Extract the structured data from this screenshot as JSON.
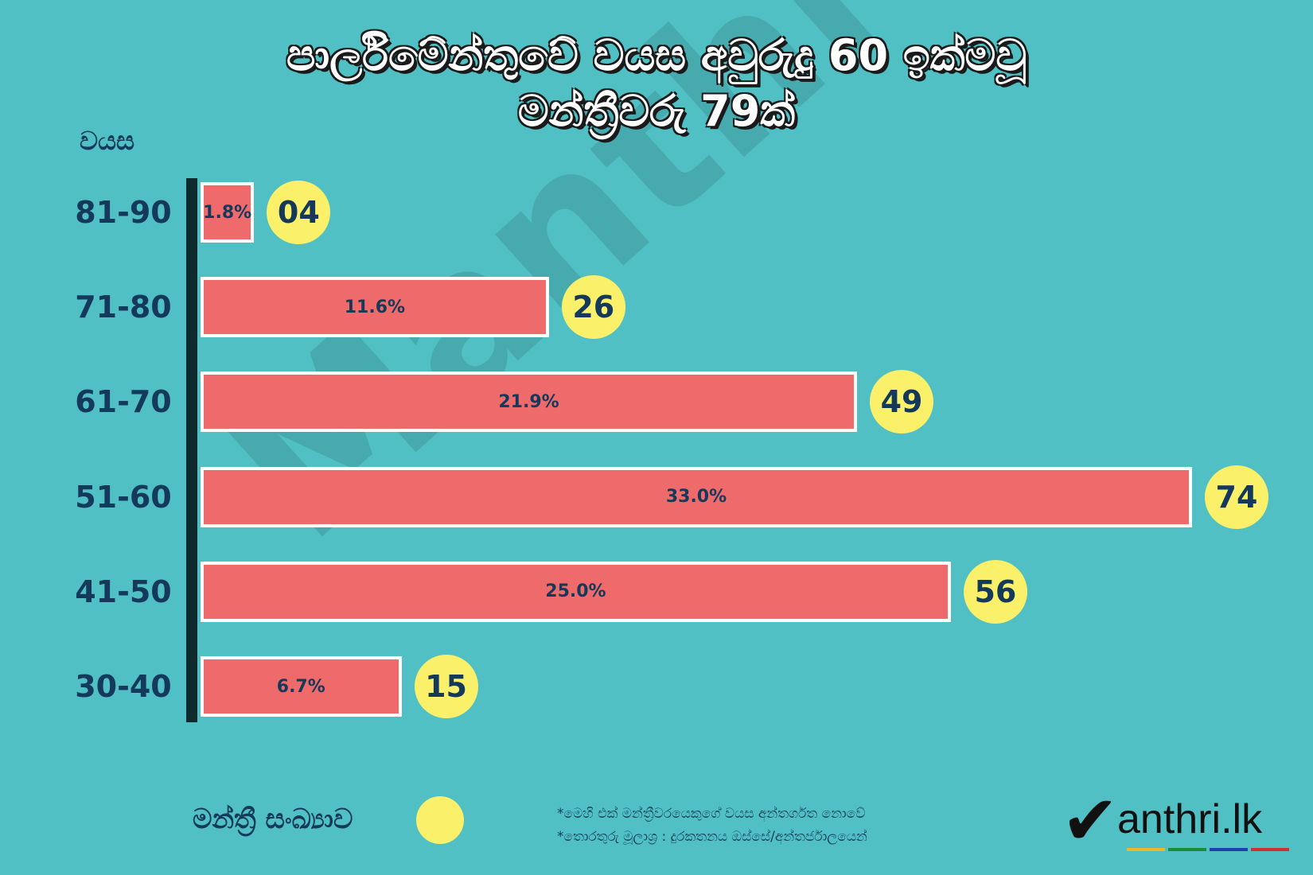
{
  "title_line1": "පාර්ලිමේන්තුවේ වයස අවුරුදු 60 ඉක්මවූ",
  "title_line2": "මන්ත්‍රීවරු 79ක්",
  "watermark": "Manthri.lk",
  "legend": {
    "label": "මන්ත්‍රී සංඛ්‍යාව",
    "color": "#fbf06a"
  },
  "notes": [
    "*මෙහි එක් මන්ත්‍රීවරයෙකුගේ වයස අන්තර්ගත නොවේ",
    "*තොරතුරු මූලාශ්‍ර : දුරකතනය ඔස්සේ/අන්තර්ජාලයෙන්"
  ],
  "logo": {
    "text": "anthri.lk",
    "stripe_colors": [
      "#e8b82a",
      "#1e8a3a",
      "#1f3fb0",
      "#d03030"
    ]
  },
  "colors": {
    "background": "#50c0c5",
    "bar": "#ef6a6a",
    "count_circle": "#fbf06a",
    "text": "#14395a"
  },
  "chart_data": {
    "type": "bar",
    "orientation": "horizontal",
    "title": "පාර්ලිමේන්තුවේ වයස අවුරුදු 60 ඉක්මවූ මන්ත්‍රීවරු 79ක්",
    "ylabel": "වයස",
    "xlabel": "",
    "categories": [
      "81-90",
      "71-80",
      "61-70",
      "51-60",
      "41-50",
      "30-40"
    ],
    "values": [
      4,
      26,
      49,
      74,
      56,
      15
    ],
    "value_labels": [
      "04",
      "26",
      "49",
      "74",
      "56",
      "15"
    ],
    "percent_labels": [
      "1.8%",
      "11.6%",
      "21.9%",
      "33.0%",
      "25.0%",
      "6.7%"
    ],
    "xlim": [
      0,
      74
    ],
    "grid": false,
    "legend_position": "bottom-left"
  }
}
